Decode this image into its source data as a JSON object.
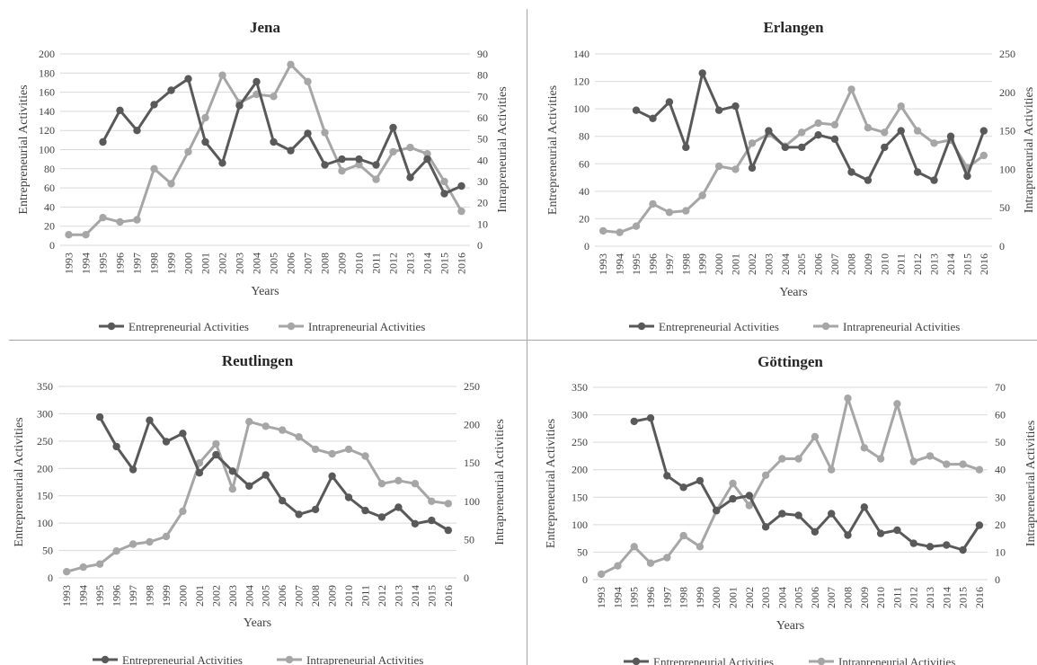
{
  "styles": {
    "entre_color": "#595959",
    "intra_color": "#a6a6a6",
    "grid_color": "#d9d9d9",
    "text_color": "#404040",
    "title_color": "#262626"
  },
  "chart_data": [
    {
      "type": "line",
      "title": "Jena",
      "xlabel": "Years",
      "ylabel": "Entrepreneurial Activities",
      "y2label": "Intrapreneurial Activities",
      "categories": [
        "1993",
        "1994",
        "1995",
        "1996",
        "1997",
        "1998",
        "1999",
        "2000",
        "2001",
        "2002",
        "2003",
        "2004",
        "2005",
        "2006",
        "2007",
        "2008",
        "2009",
        "2010",
        "2011",
        "2012",
        "2013",
        "2014",
        "2015",
        "2016"
      ],
      "ylim": [
        0,
        200
      ],
      "y2lim": [
        0,
        90
      ],
      "yticks": [
        "0",
        "20",
        "40",
        "60",
        "80",
        "100",
        "120",
        "140",
        "160",
        "180",
        "200"
      ],
      "y2ticks": [
        "0",
        "10",
        "20",
        "30",
        "40",
        "50",
        "60",
        "70",
        "80",
        "90"
      ],
      "legend_position": "bottom",
      "series": [
        {
          "name": "Entrepreneurial Activities",
          "axis": "left",
          "values": [
            null,
            null,
            108,
            141,
            120,
            147,
            162,
            174,
            108,
            86,
            146,
            171,
            108,
            99,
            117,
            84,
            90,
            90,
            84,
            123,
            71,
            90,
            54,
            62
          ]
        },
        {
          "name": "Intrapreneurial Activities",
          "axis": "right",
          "values": [
            5,
            5,
            13,
            11,
            12,
            36,
            29,
            44,
            60,
            80,
            67,
            71,
            70,
            85,
            77,
            53,
            35,
            38,
            31,
            44,
            46,
            43,
            30,
            16
          ]
        }
      ]
    },
    {
      "type": "line",
      "title": "Erlangen",
      "xlabel": "Years",
      "ylabel": "Entrepreneurial Activities",
      "y2label": "Intrapreneurial Activities",
      "categories": [
        "1993",
        "1994",
        "1995",
        "1996",
        "1997",
        "1998",
        "1999",
        "2000",
        "2001",
        "2002",
        "2003",
        "2004",
        "2005",
        "2006",
        "2007",
        "2008",
        "2009",
        "2010",
        "2011",
        "2012",
        "2013",
        "2014",
        "2015",
        "2016"
      ],
      "ylim": [
        0,
        140
      ],
      "y2lim": [
        0,
        250
      ],
      "yticks": [
        "0",
        "20",
        "40",
        "60",
        "80",
        "100",
        "120",
        "140"
      ],
      "y2ticks": [
        "0",
        "50",
        "100",
        "150",
        "200",
        "250"
      ],
      "legend_position": "bottom",
      "series": [
        {
          "name": "Entrepreneurial Activities",
          "axis": "left",
          "values": [
            null,
            null,
            99,
            93,
            105,
            72,
            126,
            99,
            102,
            57,
            84,
            72,
            72,
            81,
            78,
            54,
            48,
            72,
            84,
            54,
            48,
            80,
            51,
            84
          ]
        },
        {
          "name": "Intrapreneurial Activities",
          "axis": "right",
          "values": [
            20,
            18,
            26,
            55,
            44,
            46,
            66,
            104,
            100,
            134,
            146,
            130,
            148,
            160,
            158,
            204,
            154,
            148,
            182,
            150,
            134,
            138,
            102,
            118
          ]
        }
      ]
    },
    {
      "type": "line",
      "title": "Reutlingen",
      "xlabel": "Years",
      "ylabel": "Entrepreneurial Activities",
      "y2label": "Intrapreneurial Activities",
      "categories": [
        "1993",
        "1994",
        "1995",
        "1996",
        "1997",
        "1998",
        "1999",
        "2000",
        "2001",
        "2002",
        "2003",
        "2004",
        "2005",
        "2006",
        "2007",
        "2008",
        "2009",
        "2010",
        "2011",
        "2012",
        "2013",
        "2014",
        "2015",
        "2016"
      ],
      "ylim": [
        0,
        350
      ],
      "y2lim": [
        0,
        250
      ],
      "yticks": [
        "0",
        "50",
        "100",
        "150",
        "200",
        "250",
        "300",
        "350"
      ],
      "y2ticks": [
        "0",
        "50",
        "100",
        "150",
        "200",
        "250"
      ],
      "legend_position": "bottom",
      "series": [
        {
          "name": "Entrepreneurial Activities",
          "axis": "left",
          "values": [
            null,
            null,
            294,
            240,
            198,
            288,
            249,
            264,
            192,
            225,
            195,
            168,
            188,
            141,
            116,
            125,
            186,
            147,
            123,
            111,
            129,
            99,
            105,
            87
          ]
        },
        {
          "name": "Intrapreneurial Activities",
          "axis": "right",
          "values": [
            8,
            14,
            18,
            35,
            44,
            47,
            54,
            87,
            150,
            175,
            116,
            204,
            198,
            193,
            184,
            168,
            162,
            168,
            159,
            123,
            127,
            123,
            100,
            97
          ]
        }
      ]
    },
    {
      "type": "line",
      "title": "Göttingen",
      "xlabel": "Years",
      "ylabel": "Entrepreneurial Activities",
      "y2label": "Intrapreneurial Activities",
      "categories": [
        "1993",
        "1994",
        "1995",
        "1996",
        "1997",
        "1998",
        "1999",
        "2000",
        "2001",
        "2002",
        "2003",
        "2004",
        "2005",
        "2006",
        "2007",
        "2008",
        "2009",
        "2010",
        "2011",
        "2012",
        "2013",
        "2014",
        "2015",
        "2016"
      ],
      "ylim": [
        0,
        350
      ],
      "y2lim": [
        0,
        70
      ],
      "yticks": [
        "0",
        "50",
        "100",
        "150",
        "200",
        "250",
        "300",
        "350"
      ],
      "y2ticks": [
        "0",
        "10",
        "20",
        "30",
        "40",
        "50",
        "60",
        "70"
      ],
      "legend_position": "bottom",
      "series": [
        {
          "name": "Entrepreneurial Activities",
          "axis": "left",
          "values": [
            null,
            null,
            288,
            294,
            189,
            168,
            180,
            126,
            147,
            153,
            96,
            120,
            117,
            87,
            120,
            81,
            132,
            84,
            90,
            66,
            60,
            63,
            54,
            99
          ]
        },
        {
          "name": "Intrapreneurial Activities",
          "axis": "right",
          "values": [
            2,
            5,
            12,
            6,
            8,
            16,
            12,
            25,
            35,
            27,
            38,
            44,
            44,
            52,
            40,
            66,
            48,
            44,
            64,
            43,
            45,
            42,
            42,
            40
          ]
        }
      ]
    }
  ]
}
